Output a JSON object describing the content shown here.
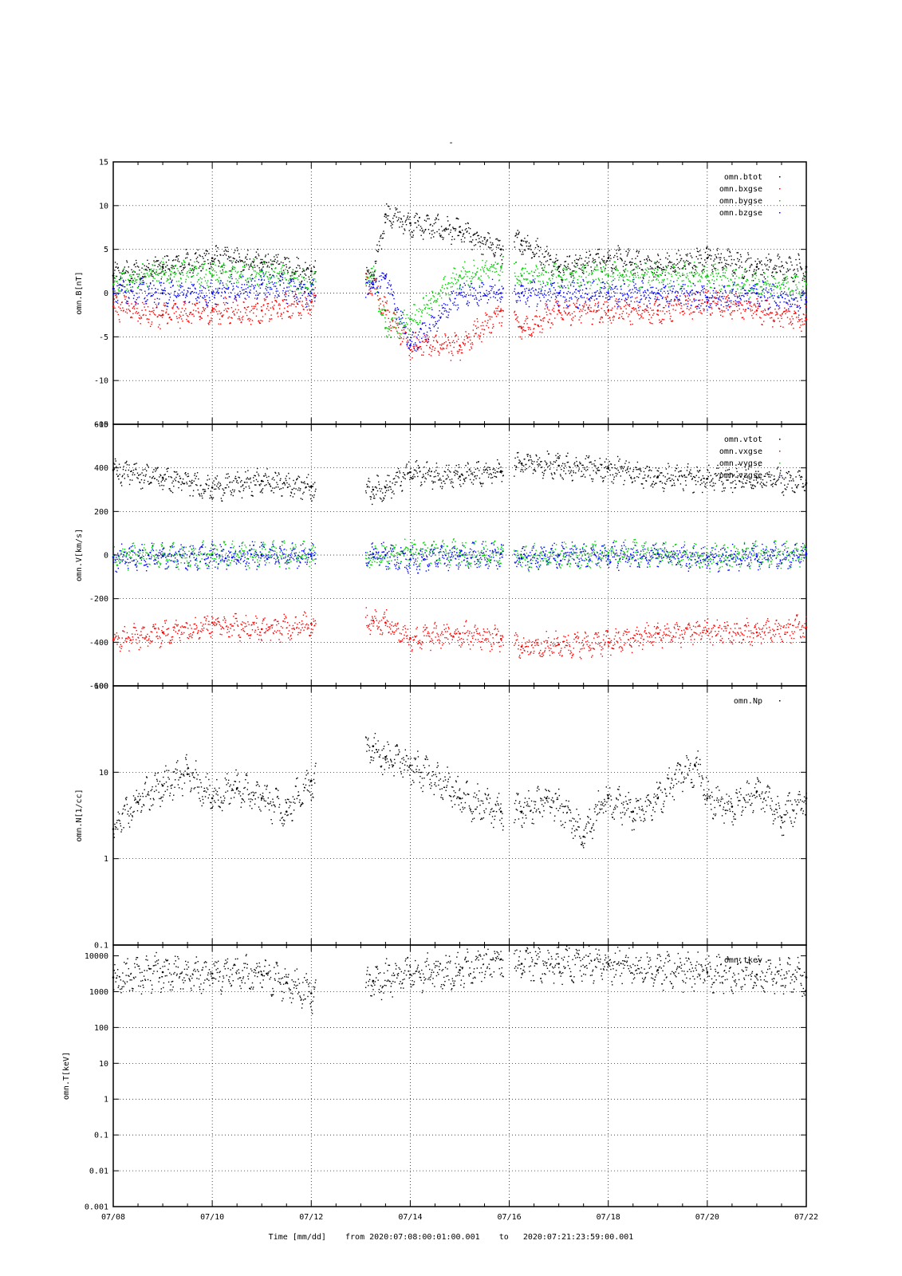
{
  "page_title": "-",
  "footer": {
    "xlabel": "Time [mm/dd]",
    "from_label": "from",
    "from_value": "2020:07:08:00:01:00.001",
    "to_label": "to",
    "to_value": "2020:07:21:23:59:00.001"
  },
  "x_axis": {
    "start": "2020-07-08",
    "end": "2020-07-22",
    "ticks": [
      "07/08",
      "07/10",
      "07/12",
      "07/14",
      "07/16",
      "07/18",
      "07/20",
      "07/22"
    ]
  },
  "chart_data": [
    {
      "type": "scatter",
      "ylabel": "omn.B[nT]",
      "ylim": [
        -15,
        15
      ],
      "yscale": "linear",
      "yticks": [
        -15,
        -10,
        -5,
        0,
        5,
        10,
        15
      ],
      "grid": true,
      "legend_position": "top-right",
      "series": [
        {
          "name": "omn.btot",
          "color": "#000000",
          "x": [
            "07/08",
            "07/09",
            "07/10",
            "07/11",
            "07/12",
            "07/13 06:00",
            "07/13 12:00",
            "07/14",
            "07/15",
            "07/15 20:00",
            "07/16 06:00",
            "07/17",
            "07/18",
            "07/19",
            "07/20",
            "07/21",
            "07/22"
          ],
          "y": [
            2,
            3,
            4,
            3.5,
            2.5,
            2,
            9,
            8,
            7,
            5,
            6,
            3,
            4,
            3,
            4,
            3,
            3
          ]
        },
        {
          "name": "omn.bxgse",
          "color": "#ff0000",
          "x": [
            "07/08",
            "07/09",
            "07/10",
            "07/11",
            "07/12",
            "07/13 06:00",
            "07/13 12:00",
            "07/14",
            "07/15",
            "07/15 20:00",
            "07/16 06:00",
            "07/17",
            "07/18",
            "07/19",
            "07/20",
            "07/21",
            "07/22"
          ],
          "y": [
            -1.5,
            -2.5,
            -2,
            -2,
            -1,
            1,
            -2,
            -6,
            -6,
            -2,
            -4,
            -2,
            -2,
            -2,
            -1,
            -2,
            -3
          ]
        },
        {
          "name": "omn.bygse",
          "color": "#00cc00",
          "x": [
            "07/08",
            "07/09",
            "07/10",
            "07/11",
            "07/12",
            "07/13 06:00",
            "07/13 12:00",
            "07/14",
            "07/15",
            "07/15 20:00",
            "07/16 06:00",
            "07/17",
            "07/18",
            "07/19",
            "07/20",
            "07/21",
            "07/22"
          ],
          "y": [
            1,
            2.5,
            2,
            2.5,
            1,
            2,
            -4,
            -3,
            2,
            3,
            2,
            2,
            2,
            2,
            2,
            1,
            1
          ]
        },
        {
          "name": "omn.bzgse",
          "color": "#0000ff",
          "x": [
            "07/08",
            "07/09",
            "07/10",
            "07/11",
            "07/12",
            "07/13 06:00",
            "07/13 12:00",
            "07/14",
            "07/15",
            "07/15 20:00",
            "07/16 06:00",
            "07/17",
            "07/18",
            "07/19",
            "07/20",
            "07/21",
            "07/22"
          ],
          "y": [
            0.5,
            0,
            0,
            1,
            0,
            1,
            2,
            -6,
            0,
            0,
            0,
            0,
            0,
            0,
            -0.5,
            0,
            -1
          ]
        }
      ]
    },
    {
      "type": "scatter",
      "ylabel": "omn.V[km/s]",
      "ylim": [
        -600,
        600
      ],
      "yscale": "linear",
      "yticks": [
        -600,
        -400,
        -200,
        0,
        200,
        400,
        600
      ],
      "grid": true,
      "legend_position": "top-right",
      "series": [
        {
          "name": "omn.vtot",
          "color": "#000000",
          "x": [
            "07/08",
            "07/09",
            "07/10",
            "07/11",
            "07/12",
            "07/13 06:00",
            "07/13 12:00",
            "07/14",
            "07/15",
            "07/15 20:00",
            "07/16 06:00",
            "07/17",
            "07/18",
            "07/19",
            "07/20",
            "07/21",
            "07/22"
          ],
          "y": [
            390,
            355,
            310,
            340,
            315,
            300,
            310,
            380,
            360,
            385,
            420,
            410,
            400,
            360,
            350,
            355,
            330
          ]
        },
        {
          "name": "omn.vxgse",
          "color": "#ff0000",
          "x": [
            "07/08",
            "07/09",
            "07/10",
            "07/11",
            "07/12",
            "07/13 06:00",
            "07/13 12:00",
            "07/14",
            "07/15",
            "07/15 20:00",
            "07/16 06:00",
            "07/17",
            "07/18",
            "07/19",
            "07/20",
            "07/21",
            "07/22"
          ],
          "y": [
            -390,
            -355,
            -310,
            -340,
            -315,
            -300,
            -310,
            -380,
            -360,
            -385,
            -420,
            -410,
            -400,
            -360,
            -350,
            -355,
            -330
          ]
        },
        {
          "name": "omn.vygse",
          "color": "#00cc00",
          "x": [
            "07/08",
            "07/09",
            "07/10",
            "07/11",
            "07/12",
            "07/13 06:00",
            "07/13 12:00",
            "07/14",
            "07/15",
            "07/15 20:00",
            "07/16 06:00",
            "07/17",
            "07/18",
            "07/19",
            "07/20",
            "07/21",
            "07/22"
          ],
          "y": [
            -5,
            0,
            5,
            5,
            0,
            -10,
            0,
            15,
            10,
            10,
            -10,
            0,
            10,
            10,
            -10,
            5,
            5
          ]
        },
        {
          "name": "omn.vzgse",
          "color": "#0000ff",
          "x": [
            "07/08",
            "07/09",
            "07/10",
            "07/11",
            "07/12",
            "07/13 06:00",
            "07/13 12:00",
            "07/14",
            "07/15",
            "07/15 20:00",
            "07/16 06:00",
            "07/17",
            "07/18",
            "07/19",
            "07/20",
            "07/21",
            "07/22"
          ],
          "y": [
            -10,
            -5,
            0,
            0,
            -5,
            5,
            0,
            -20,
            -5,
            5,
            -15,
            0,
            -5,
            5,
            -10,
            -5,
            5
          ]
        }
      ]
    },
    {
      "type": "scatter",
      "ylabel": "omn.N[1/cc]",
      "ylim": [
        0.1,
        100
      ],
      "yscale": "log",
      "yticks": [
        0.1,
        1,
        10,
        100
      ],
      "grid": true,
      "legend_position": "top-right",
      "series": [
        {
          "name": "omn.Np",
          "color": "#000000",
          "x": [
            "07/08",
            "07/08 12:00",
            "07/09",
            "07/09 12:00",
            "07/10",
            "07/10 12:00",
            "07/11",
            "07/11 12:00",
            "07/12",
            "07/13 06:00",
            "07/13 12:00",
            "07/14",
            "07/15",
            "07/15 20:00",
            "07/16 06:00",
            "07/16 18:00",
            "07/17 12:00",
            "07/18",
            "07/18 12:00",
            "07/19",
            "07/19 18:00",
            "07/20",
            "07/20 12:00",
            "07/21",
            "07/21 12:00",
            "07/22"
          ],
          "y": [
            2.2,
            4.5,
            7,
            9.5,
            5,
            6.5,
            5,
            3.5,
            8,
            20,
            15,
            12,
            5,
            3.5,
            3.5,
            5,
            1.8,
            5,
            3.5,
            5,
            12,
            5,
            4,
            6,
            3,
            5
          ]
        }
      ]
    },
    {
      "type": "scatter",
      "ylabel": "omn.T[keV]",
      "ylim": [
        0.001,
        20000
      ],
      "yscale": "log",
      "yticks": [
        0.001,
        0.01,
        0.1,
        1,
        10,
        100,
        1000,
        10000
      ],
      "ytick_labels": [
        "0.001",
        "0.01",
        "0.1",
        "1",
        "10",
        "100",
        "1000",
        "10000"
      ],
      "grid": true,
      "legend_position": "top-right",
      "series": [
        {
          "name": "omn.tkev",
          "color": "#000000",
          "x": [
            "07/08",
            "07/09",
            "07/10",
            "07/11",
            "07/11 12:00",
            "07/12",
            "07/13 06:00",
            "07/14",
            "07/15",
            "07/15 20:00",
            "07/16 06:00",
            "07/17",
            "07/18",
            "07/19",
            "07/20",
            "07/21",
            "07/22"
          ],
          "y": [
            2500,
            3500,
            3200,
            3000,
            1800,
            900,
            2000,
            3000,
            4000,
            8000,
            6000,
            6000,
            6000,
            4000,
            3500,
            3000,
            2500
          ]
        }
      ]
    }
  ]
}
